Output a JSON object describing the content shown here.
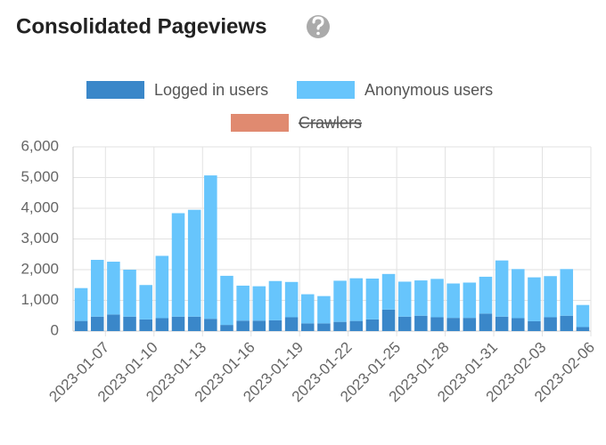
{
  "chart_data": {
    "type": "stacked-bar",
    "title": "Consolidated Pageviews",
    "categories": [
      null,
      "2023-01-07",
      null,
      null,
      "2023-01-10",
      null,
      null,
      "2023-01-13",
      null,
      null,
      "2023-01-16",
      null,
      null,
      "2023-01-19",
      null,
      null,
      "2023-01-22",
      null,
      null,
      "2023-01-25",
      null,
      null,
      "2023-01-28",
      null,
      null,
      "2023-01-31",
      null,
      null,
      "2023-02-03",
      null,
      null,
      "2023-02-06"
    ],
    "series": [
      {
        "name": "Logged in users",
        "color": "#3a87c9",
        "values": [
          330,
          470,
          540,
          470,
          380,
          420,
          470,
          470,
          400,
          200,
          340,
          340,
          350,
          450,
          250,
          250,
          300,
          330,
          380,
          700,
          470,
          500,
          450,
          430,
          430,
          570,
          470,
          420,
          320,
          450,
          500,
          130
        ]
      },
      {
        "name": "Anonymous users",
        "color": "#67c5fc",
        "values": [
          1070,
          1850,
          1720,
          1530,
          1120,
          2030,
          3370,
          3480,
          4670,
          1600,
          1140,
          1120,
          1280,
          1150,
          950,
          890,
          1340,
          1390,
          1330,
          1160,
          1140,
          1150,
          1250,
          1120,
          1150,
          1200,
          1830,
          1600,
          1430,
          1340,
          1520,
          720
        ]
      },
      {
        "name": "Crawlers",
        "color": "#e08a70",
        "hidden": true
      }
    ],
    "ylim": [
      0,
      6000
    ],
    "yticks": [
      0,
      {
        "value": 1000,
        "label": "1,000"
      },
      {
        "value": 2000,
        "label": "2,000"
      },
      {
        "value": 3000,
        "label": "3,000"
      },
      {
        "value": 4000,
        "label": "4,000"
      },
      {
        "value": 5000,
        "label": "5,000"
      },
      {
        "value": 6000,
        "label": "6,000"
      }
    ],
    "grid": true
  }
}
